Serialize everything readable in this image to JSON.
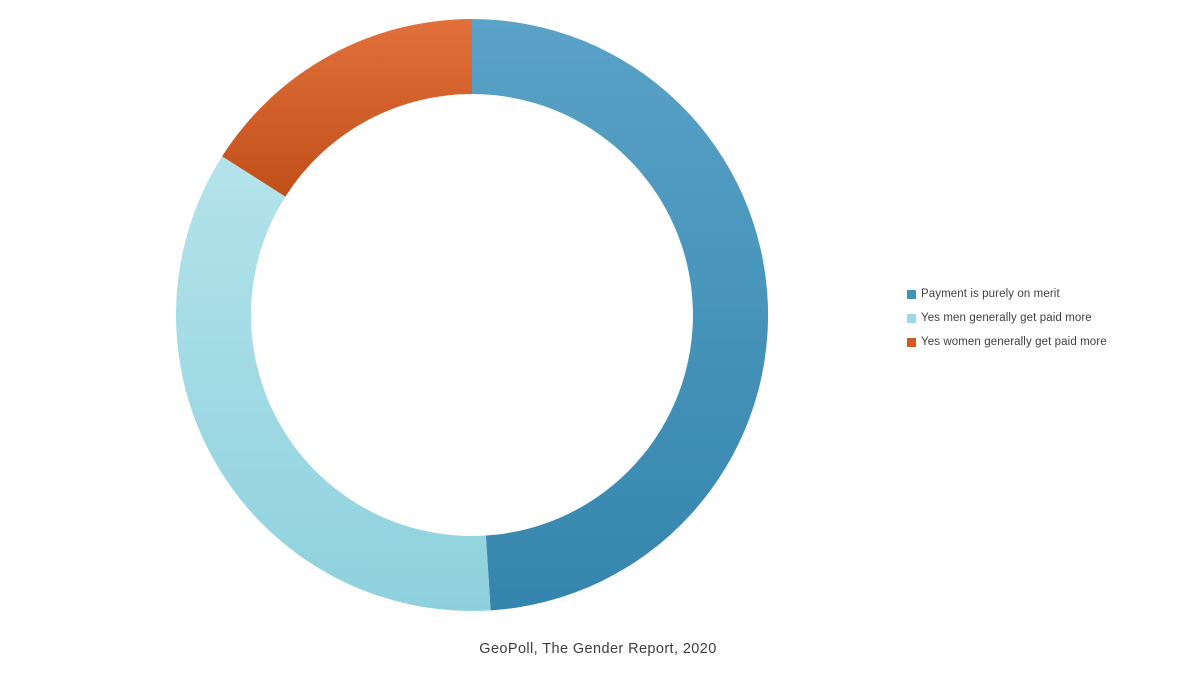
{
  "page": {
    "background_color": "#ffffff",
    "text_color": "#3f3f3f"
  },
  "chart_data": {
    "type": "pie",
    "subtype": "donut",
    "title": "",
    "caption": "GeoPoll, The Gender Report, 2020",
    "legend_position": "right",
    "direction": "clockwise",
    "start_angle_deg": 0,
    "donut_hole_ratio": 0.75,
    "grid": false,
    "slices": [
      {
        "label": "Payment is purely on merit",
        "value": 49,
        "color": "#4193ba",
        "color_top": "#5aa2c7",
        "color_bottom": "#3485ad"
      },
      {
        "label": "Yes men generally get paid more",
        "value": 35,
        "color": "#9cd9e4",
        "color_top": "#b4e3eb",
        "color_bottom": "#8ed1dd"
      },
      {
        "label": "Yes women generally get paid more",
        "value": 16,
        "color": "#d4591f",
        "color_top": "#e2703c",
        "color_bottom": "#c14f19"
      }
    ]
  }
}
